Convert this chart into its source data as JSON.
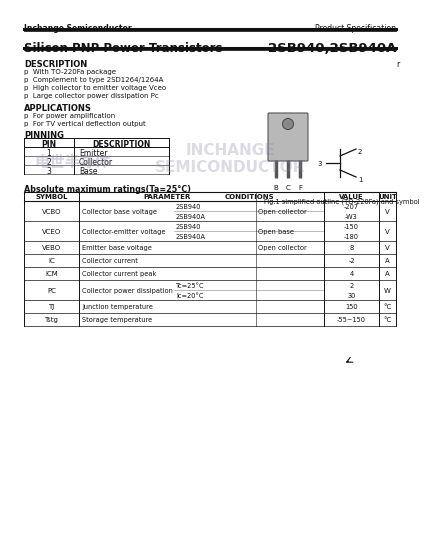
{
  "header_company": "Inchange Semiconductor",
  "header_right": "Product Specification",
  "title_left": "Silicon PNP Power Transistors",
  "title_right": "2SB940,2SB940A",
  "bg_color": "#ffffff",
  "description_title": "DESCRIPTION",
  "desc_bullet": "p",
  "description_items": [
    "With TO-220Fa package",
    "Complement to type 2SD1264/1264A",
    "High collector to emitter voltage Vceo",
    "Large collector power dissipation Pc"
  ],
  "applications_title": "APPLICATIONS",
  "applications_items": [
    "For power amplification",
    "For TV vertical deflection output"
  ],
  "pinning_title": "PINNING",
  "pin_headers": [
    "PIN",
    "DESCRIPTION"
  ],
  "pin_rows": [
    [
      "1",
      "Emitter"
    ],
    [
      "2",
      "Collector"
    ],
    [
      "3",
      "Base"
    ]
  ],
  "fig_caption": "Fig.1 simplified outline (TO-220Fa) and symbol",
  "abs_title": "Absolute maximum ratings(Ta=25°C)",
  "table_headers": [
    "SYMBOL",
    "PARAMETER",
    "CONDITIONS",
    "VALUE",
    "UNIT"
  ],
  "table_data": [
    {
      "symbol": "VCBO",
      "parameter": "Collector base voltage",
      "cond_left": [
        "2SB940",
        "2SB940A"
      ],
      "cond_right": "Open collector",
      "values": [
        "-207",
        "-W3"
      ],
      "unit": "V"
    },
    {
      "symbol": "VCEO",
      "parameter": "Collector-emitter voltage",
      "cond_left": [
        "2SB940",
        "2SB940A"
      ],
      "cond_right": "Open base",
      "values": [
        "-150",
        "-180"
      ],
      "unit": "V"
    },
    {
      "symbol": "VEBO",
      "parameter": "Emitter base voltage",
      "cond_left": [],
      "cond_right": "Open collector",
      "values": [
        "8"
      ],
      "unit": "V"
    },
    {
      "symbol": "IC",
      "parameter": "Collector current",
      "cond_left": [],
      "cond_right": "",
      "values": [
        "-2"
      ],
      "unit": "A"
    },
    {
      "symbol": "ICM",
      "parameter": "Collector current peak",
      "cond_left": [],
      "cond_right": "",
      "values": [
        "4"
      ],
      "unit": "A"
    },
    {
      "symbol": "PC",
      "parameter": "Collector power dissipation",
      "cond_left": [
        "Tc=25°C",
        "Ic=20°C"
      ],
      "cond_right": "",
      "values": [
        "2",
        "30"
      ],
      "unit": "W"
    },
    {
      "symbol": "TJ",
      "parameter": "Junction temperature",
      "cond_left": [],
      "cond_right": "",
      "values": [
        "150"
      ],
      "unit": "°C"
    },
    {
      "symbol": "Tstg",
      "parameter": "Storage temperature",
      "cond_left": [],
      "cond_right": "",
      "values": [
        "-55~150"
      ],
      "unit": "°C"
    }
  ],
  "watermark_cn": "电世半导体",
  "watermark_en": "INCHANGE\nSEMICONDUCTOR"
}
